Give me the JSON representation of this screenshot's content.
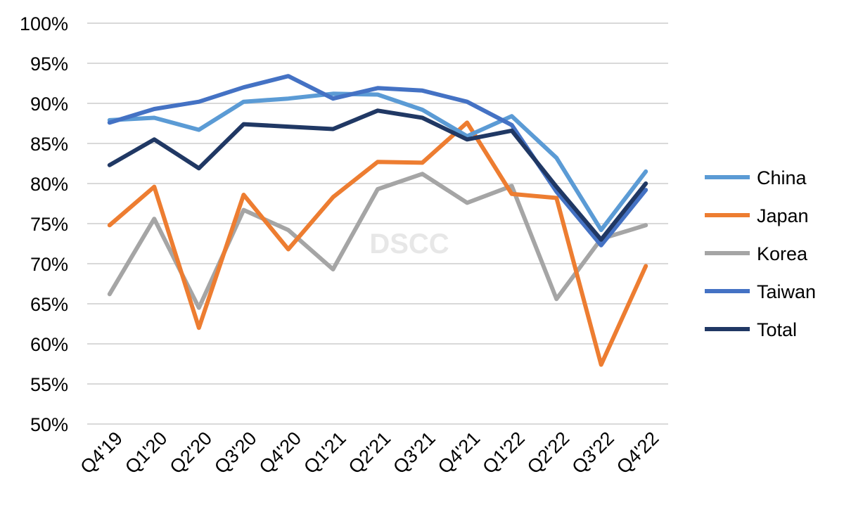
{
  "chart_data": {
    "type": "line",
    "categories": [
      "Q4'19",
      "Q1'20",
      "Q2'20",
      "Q3'20",
      "Q4'20",
      "Q1'21",
      "Q2'21",
      "Q3'21",
      "Q4'21",
      "Q1'22",
      "Q2'22",
      "Q3'22",
      "Q4'22"
    ],
    "y_ticks": [
      "50%",
      "55%",
      "60%",
      "65%",
      "70%",
      "75%",
      "80%",
      "85%",
      "90%",
      "95%",
      "100%"
    ],
    "ylim": [
      50,
      100
    ],
    "grid": true,
    "legend_position": "right",
    "watermark": "DSCC",
    "series": [
      {
        "name": "Korea",
        "color": "#a5a5a5",
        "values": [
          66.2,
          75.6,
          64.5,
          76.7,
          74.2,
          69.3,
          79.3,
          81.2,
          77.6,
          79.7,
          65.6,
          73.1,
          74.8
        ]
      },
      {
        "name": "Japan",
        "color": "#ed7d31",
        "values": [
          74.8,
          79.6,
          62.0,
          78.6,
          71.8,
          78.3,
          82.7,
          82.6,
          87.6,
          78.7,
          78.2,
          57.4,
          69.7
        ]
      },
      {
        "name": "China",
        "color": "#5b9bd5",
        "values": [
          87.9,
          88.2,
          86.7,
          90.2,
          90.6,
          91.2,
          91.1,
          89.2,
          85.9,
          88.4,
          83.2,
          74.2,
          81.5
        ]
      },
      {
        "name": "Taiwan",
        "color": "#4472c4",
        "values": [
          87.6,
          89.3,
          90.2,
          92.0,
          93.4,
          90.6,
          91.9,
          91.6,
          90.2,
          87.3,
          79.0,
          72.3,
          79.2
        ]
      },
      {
        "name": "Total",
        "color": "#203864",
        "values": [
          82.3,
          85.5,
          81.9,
          87.4,
          87.1,
          86.8,
          89.1,
          88.2,
          85.5,
          86.6,
          79.6,
          73.0,
          80.0
        ]
      }
    ],
    "legend_order": [
      "China",
      "Japan",
      "Korea",
      "Taiwan",
      "Total"
    ]
  }
}
